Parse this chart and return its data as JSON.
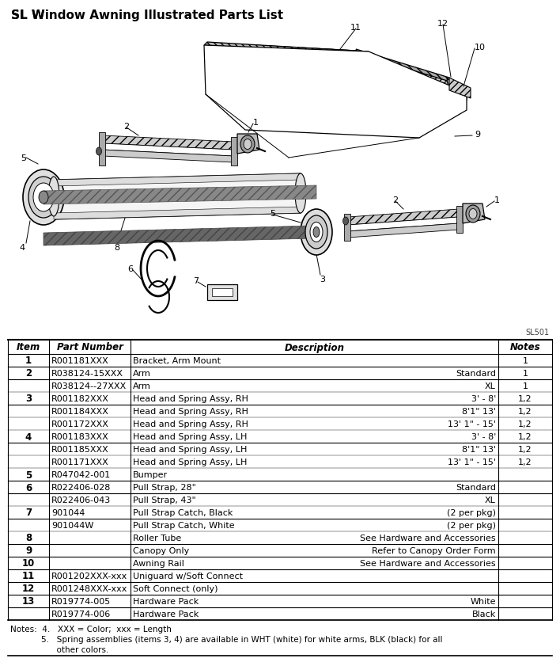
{
  "title": "SL Window Awning Illustrated Parts List",
  "table_rows": [
    {
      "item": "1",
      "part": "R001181XXX",
      "desc": "Bracket, Arm Mount",
      "spec": "",
      "notes": "1"
    },
    {
      "item": "2",
      "part": "R038124-15XXX",
      "desc": "Arm",
      "spec": "Standard",
      "notes": "1"
    },
    {
      "item": "",
      "part": "R038124--27XXX",
      "desc": "Arm",
      "spec": "XL",
      "notes": "1"
    },
    {
      "item": "3",
      "part": "R001182XXX",
      "desc": "Head and Spring Assy, RH",
      "spec": "3' - 8'",
      "notes": "1,2"
    },
    {
      "item": "",
      "part": "R001184XXX",
      "desc": "Head and Spring Assy, RH",
      "spec": "8'1\" 13'",
      "notes": "1,2"
    },
    {
      "item": "",
      "part": "R001172XXX",
      "desc": "Head and Spring Assy, RH",
      "spec": "13' 1\" - 15'",
      "notes": "1,2"
    },
    {
      "item": "4",
      "part": "R001183XXX",
      "desc": "Head and Spring Assy, LH",
      "spec": "3' - 8'",
      "notes": "1,2"
    },
    {
      "item": "",
      "part": "R001185XXX",
      "desc": "Head and Spring Assy, LH",
      "spec": "8'1\" 13'",
      "notes": "1,2"
    },
    {
      "item": "",
      "part": "R001171XXX",
      "desc": "Head and Spring Assy, LH",
      "spec": "13' 1\" - 15'",
      "notes": "1,2"
    },
    {
      "item": "5",
      "part": "R047042-001",
      "desc": "Bumper",
      "spec": "",
      "notes": ""
    },
    {
      "item": "6",
      "part": "R022406-028",
      "desc": "Pull Strap, 28\"",
      "spec": "Standard",
      "notes": ""
    },
    {
      "item": "",
      "part": "R022406-043",
      "desc": "Pull Strap, 43\"",
      "spec": "XL",
      "notes": ""
    },
    {
      "item": "7",
      "part": "901044",
      "desc": "Pull Strap Catch, Black",
      "spec": "(2 per pkg)",
      "notes": ""
    },
    {
      "item": "",
      "part": "901044W",
      "desc": "Pull Strap Catch, White",
      "spec": "(2 per pkg)",
      "notes": ""
    },
    {
      "item": "8",
      "part": "",
      "desc": "Roller Tube",
      "spec": "See Hardware and Accessories",
      "notes": ""
    },
    {
      "item": "9",
      "part": "",
      "desc": "Canopy Only",
      "spec": "Refer to Canopy Order Form",
      "notes": ""
    },
    {
      "item": "10",
      "part": "",
      "desc": "Awning Rail",
      "spec": "See Hardware and Accessories",
      "notes": ""
    },
    {
      "item": "11",
      "part": "R001202XXX-xxx",
      "desc": "Uniguard w/Soft Connect",
      "spec": "",
      "notes": ""
    },
    {
      "item": "12",
      "part": "R001248XXX-xxx",
      "desc": "Soft Connect (only)",
      "spec": "",
      "notes": ""
    },
    {
      "item": "13",
      "part": "R019774-005",
      "desc": "Hardware Pack",
      "spec": "White",
      "notes": ""
    },
    {
      "item": "",
      "part": "R019774-006",
      "desc": "Hardware Pack",
      "spec": "Black",
      "notes": ""
    }
  ],
  "notes_line1": "Notes:  4.   XXX = Color;  xxx = Length",
  "notes_line2": "            5.   Spring assemblies (items 3, 4) are available in WHT (white) for white arms, BLK (black) for all",
  "notes_line3": "                  other colors.",
  "sl_code": "SL501",
  "bg_color": "#ffffff"
}
